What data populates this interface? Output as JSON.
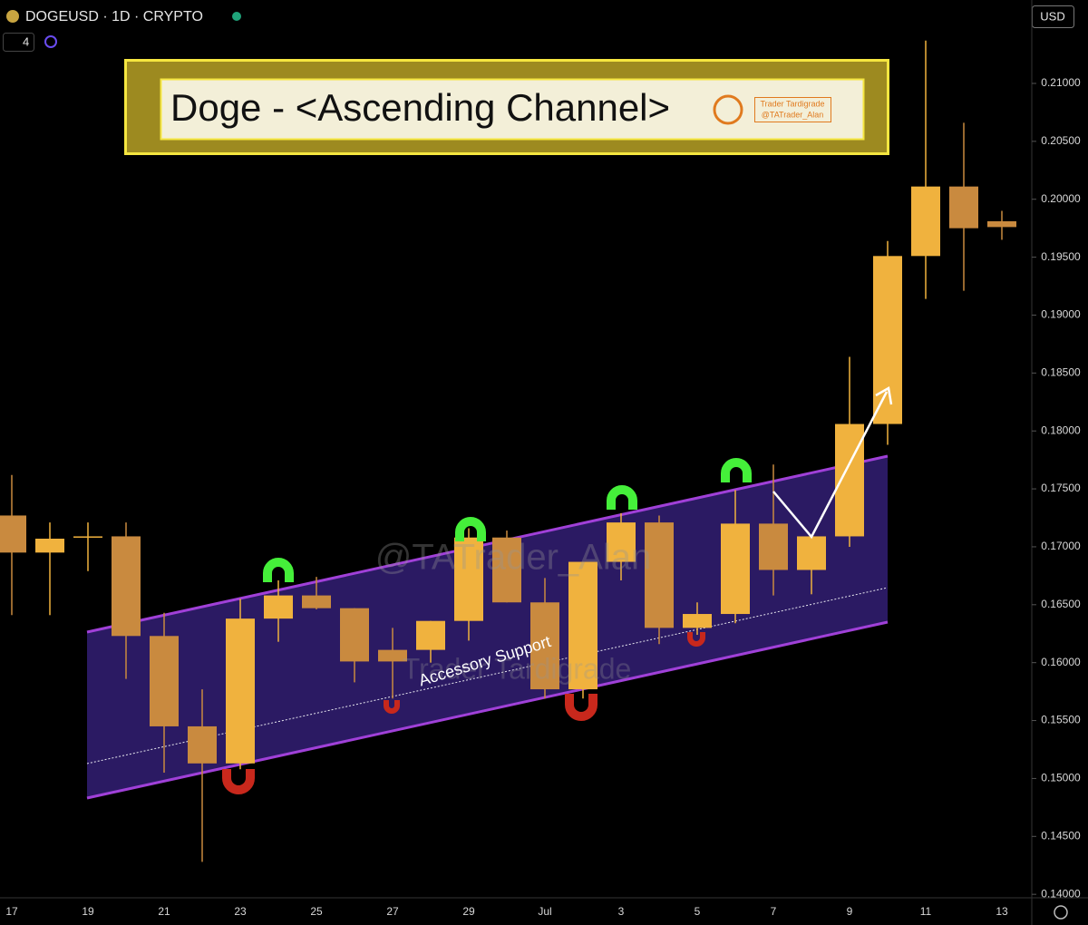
{
  "header": {
    "symbol": "DOGEUSD · 1D · CRYPTO",
    "indicator_count": "4",
    "currency": "USD"
  },
  "chart_data": {
    "type": "candlestick",
    "title": "Doge - <Ascending Channel>",
    "badge": [
      "Trader Tardigrade",
      "@TATrader_Alan"
    ],
    "watermark": [
      "@TATrader_Alan",
      "Trader Tardigrade"
    ],
    "annotation": "Accessory Support",
    "categories": [
      "17",
      null,
      "19",
      null,
      "21",
      null,
      "23",
      null,
      "25",
      null,
      "27",
      null,
      "29",
      null,
      "Jul",
      null,
      "3",
      null,
      "5",
      null,
      "7",
      null,
      "9",
      null,
      "11",
      null,
      "13"
    ],
    "open": [
      0.1727,
      0.1695,
      0.1708,
      0.1709,
      0.1623,
      0.1545,
      0.1513,
      0.1638,
      0.1658,
      0.1647,
      0.1611,
      0.1611,
      0.1636,
      0.1708,
      0.1652,
      0.1577,
      0.1687,
      0.1721,
      0.163,
      0.1642,
      0.172,
      0.168,
      0.1709,
      0.1806,
      0.1951,
      0.2011,
      0.1981
    ],
    "high": [
      0.1762,
      0.1721,
      0.1721,
      0.1721,
      0.1643,
      0.1577,
      0.1655,
      0.1671,
      0.1674,
      0.1647,
      0.163,
      0.1636,
      0.1716,
      0.1714,
      0.1673,
      0.1687,
      0.1729,
      0.1727,
      0.1652,
      0.1749,
      0.1771,
      0.1709,
      0.1864,
      0.1964,
      0.2137,
      0.2066,
      0.199
    ],
    "low": [
      0.1641,
      0.1641,
      0.1679,
      0.1586,
      0.1505,
      0.1428,
      0.1508,
      0.1618,
      0.1646,
      0.1583,
      0.1569,
      0.16,
      0.1619,
      0.1652,
      0.1569,
      0.1569,
      0.1671,
      0.1616,
      0.1624,
      0.1634,
      0.1658,
      0.1659,
      0.17,
      0.1788,
      0.1914,
      0.1921,
      0.1965
    ],
    "close": [
      0.1695,
      0.1707,
      0.1709,
      0.1623,
      0.1545,
      0.1513,
      0.1638,
      0.1658,
      0.1647,
      0.1601,
      0.1601,
      0.1636,
      0.1708,
      0.1652,
      0.1577,
      0.1687,
      0.1721,
      0.163,
      0.1642,
      0.172,
      0.168,
      0.1709,
      0.1806,
      0.1951,
      0.2011,
      0.1975,
      0.1976
    ],
    "up_color": "#f0b23e",
    "down_color": "#c98a3f",
    "ylim": [
      0.1397,
      0.2172
    ],
    "yticks": [
      {
        "value": 0.14,
        "label": "0.14000"
      },
      {
        "value": 0.145,
        "label": "0.14500"
      },
      {
        "value": 0.15,
        "label": "0.15000"
      },
      {
        "value": 0.155,
        "label": "0.15500"
      },
      {
        "value": 0.16,
        "label": "0.16000"
      },
      {
        "value": 0.165,
        "label": "0.16500"
      },
      {
        "value": 0.17,
        "label": "0.17000"
      },
      {
        "value": 0.175,
        "label": "0.17500"
      },
      {
        "value": 0.18,
        "label": "0.18000"
      },
      {
        "value": 0.185,
        "label": "0.18500"
      },
      {
        "value": 0.19,
        "label": "0.19000"
      },
      {
        "value": 0.195,
        "label": "0.19500"
      },
      {
        "value": 0.2,
        "label": "0.20000"
      },
      {
        "value": 0.205,
        "label": "0.20500"
      },
      {
        "value": 0.21,
        "label": "0.21000"
      }
    ]
  }
}
